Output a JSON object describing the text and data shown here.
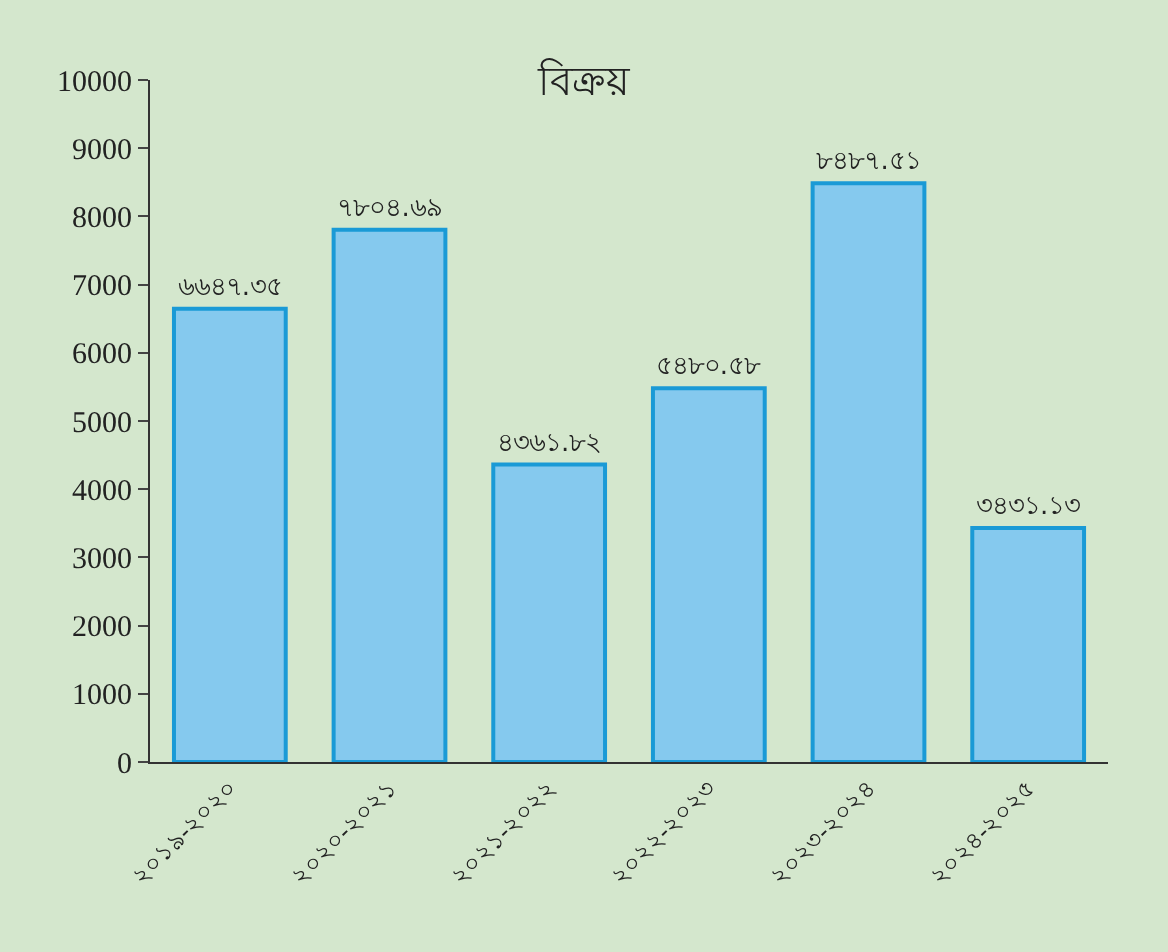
{
  "chart_data": {
    "type": "bar",
    "title": "বিক্রয়",
    "categories": [
      "২০১৯-২০২০",
      "২০২০-২০২১",
      "২০২১-২০২২",
      "২০২২-২০২৩",
      "২০২৩-২০২৪",
      "২০২৪-২০২৫"
    ],
    "values": [
      6647.35,
      7804.69,
      4361.82,
      5480.58,
      8487.51,
      3431.13
    ],
    "value_labels": [
      "৬৬৪৭.৩৫",
      "৭৮০৪.৬৯",
      "৪৩৬১.৮২",
      "৫৪৮০.৫৮",
      "৮৪৮৭.৫১",
      "৩৪৩১.১৩"
    ],
    "color": "#85c9ee",
    "ylim": [
      0,
      10000
    ],
    "yticks": [
      0,
      1000,
      2000,
      3000,
      4000,
      5000,
      6000,
      7000,
      8000,
      9000,
      10000
    ],
    "grid": false,
    "legend": false
  }
}
